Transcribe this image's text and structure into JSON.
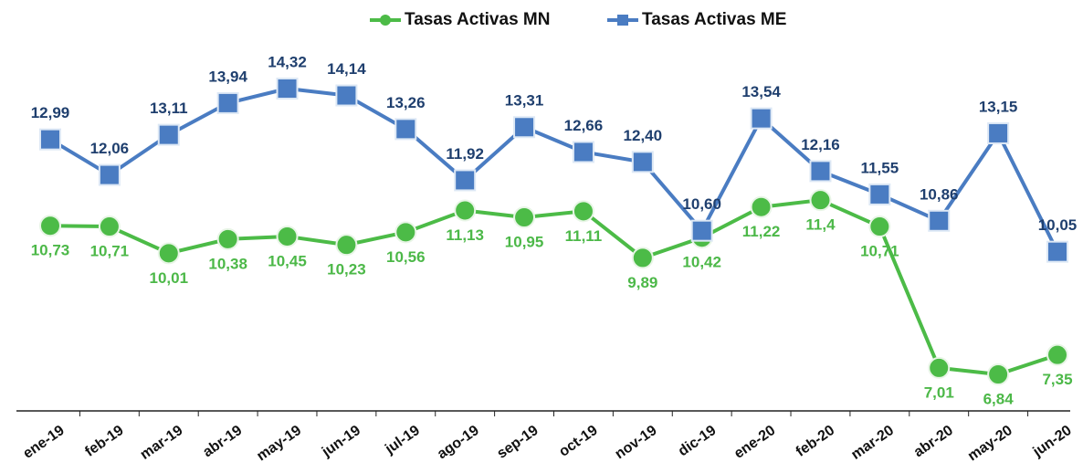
{
  "chart_data": {
    "type": "line",
    "categories": [
      "ene-19",
      "feb-19",
      "mar-19",
      "abr-19",
      "may-19",
      "jun-19",
      "jul-19",
      "ago-19",
      "sep-19",
      "oct-19",
      "nov-19",
      "dic-19",
      "ene-20",
      "feb-20",
      "mar-20",
      "abr-20",
      "may-20",
      "jun-20"
    ],
    "series": [
      {
        "name": "Tasas Activas MN",
        "color": "#4cbb47",
        "values": [
          10.73,
          10.71,
          10.01,
          10.38,
          10.45,
          10.23,
          10.56,
          11.13,
          10.95,
          11.11,
          9.89,
          10.42,
          11.22,
          11.4,
          10.71,
          7.01,
          6.84,
          7.35
        ],
        "value_labels": [
          "10,73",
          "10,71",
          "10,01",
          "10,38",
          "10,45",
          "10,23",
          "10,56",
          "11,13",
          "10,95",
          "11,11",
          "9,89",
          "10,42",
          "11,22",
          "11,4",
          "10,71",
          "7,01",
          "6,84",
          "7,35"
        ]
      },
      {
        "name": "Tasas Activas ME",
        "color": "#4a7cc2",
        "values": [
          12.99,
          12.06,
          13.11,
          13.94,
          14.32,
          14.14,
          13.26,
          11.92,
          13.31,
          12.66,
          12.4,
          10.6,
          13.54,
          12.16,
          11.55,
          10.86,
          13.15,
          10.05
        ],
        "value_labels": [
          "12,99",
          "12,06",
          "13,11",
          "13,94",
          "14,32",
          "14,14",
          "13,26",
          "11,92",
          "13,31",
          "12,66",
          "12,40",
          "10,60",
          "13,54",
          "12,16",
          "11,55",
          "10,86",
          "13,15",
          "10,05"
        ]
      }
    ]
  }
}
